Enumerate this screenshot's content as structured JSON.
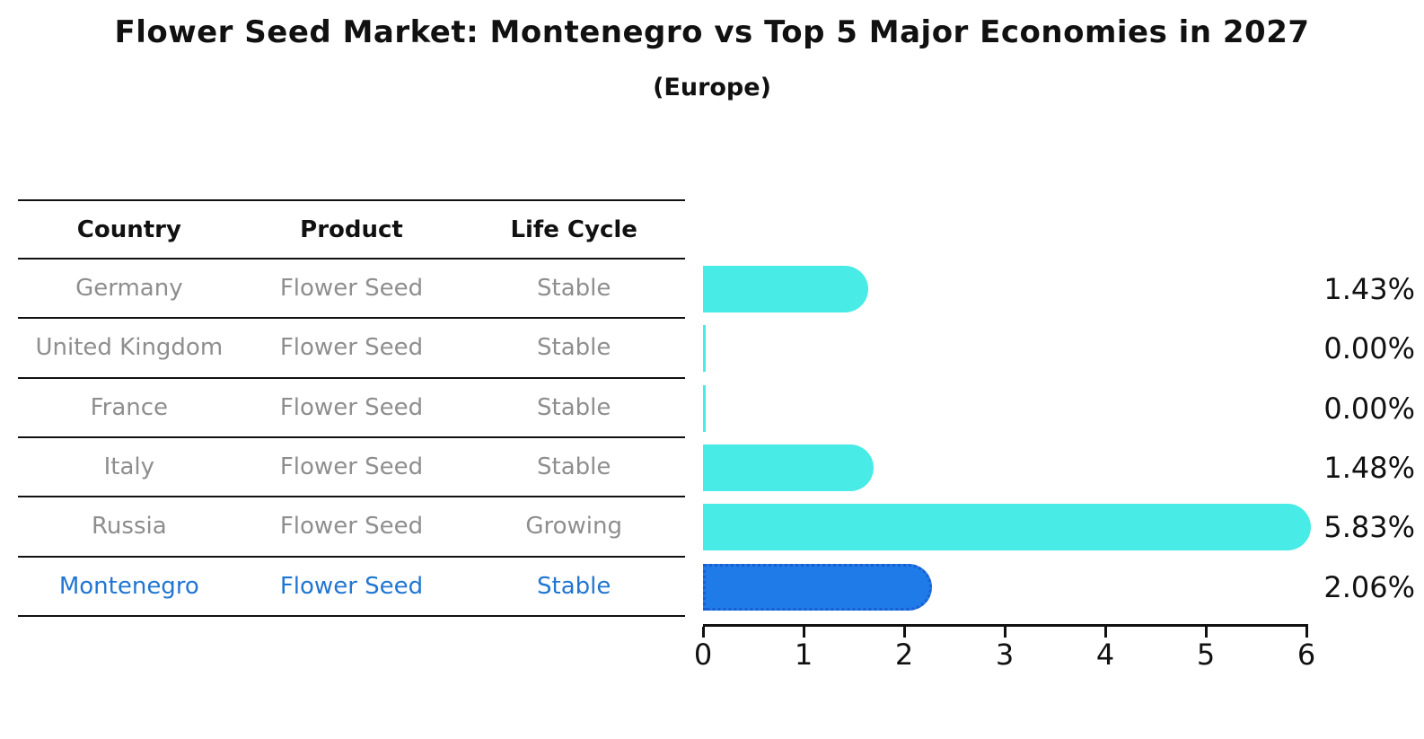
{
  "title": "Flower Seed Market: Montenegro vs Top 5 Major Economies in 2027",
  "subtitle": "(Europe)",
  "table": {
    "headers": [
      "Country",
      "Product",
      "Life Cycle"
    ],
    "header_color": "#111111",
    "text_color": "#8e8e8e",
    "highlight_text_color": "#2176d2"
  },
  "rows": [
    {
      "country": "Germany",
      "product": "Flower Seed",
      "life_cycle": "Stable",
      "value": 1.43,
      "value_label": "1.43%",
      "highlighted": false
    },
    {
      "country": "United Kingdom",
      "product": "Flower Seed",
      "life_cycle": "Stable",
      "value": 0.0,
      "value_label": "0.00%",
      "highlighted": false
    },
    {
      "country": "France",
      "product": "Flower Seed",
      "life_cycle": "Stable",
      "value": 0.0,
      "value_label": "0.00%",
      "highlighted": false
    },
    {
      "country": "Italy",
      "product": "Flower Seed",
      "life_cycle": "Stable",
      "value": 1.48,
      "value_label": "1.48%",
      "highlighted": false
    },
    {
      "country": "Russia",
      "product": "Flower Seed",
      "life_cycle": "Growing",
      "value": 5.83,
      "value_label": "5.83%",
      "highlighted": false
    },
    {
      "country": "Montenegro",
      "product": "Flower Seed",
      "life_cycle": "Stable",
      "value": 2.06,
      "value_label": "2.06%",
      "highlighted": true
    }
  ],
  "chart_data": {
    "type": "bar",
    "orientation": "horizontal",
    "title": "Flower Seed Market: Montenegro vs Top 5 Major Economies in 2027",
    "subtitle": "(Europe)",
    "categories": [
      "Germany",
      "United Kingdom",
      "France",
      "Italy",
      "Russia",
      "Montenegro"
    ],
    "values": [
      1.43,
      0.0,
      0.0,
      1.48,
      5.83,
      2.06
    ],
    "value_labels": [
      "1.43%",
      "0.00%",
      "0.00%",
      "1.48%",
      "5.83%",
      "2.06%"
    ],
    "x_ticks": [
      0,
      1,
      2,
      3,
      4,
      5,
      6
    ],
    "xlim": [
      0,
      6
    ],
    "grid": false,
    "legend": null,
    "bar_color": "#48ebe6",
    "highlight_index": 5,
    "highlight_bar_color": "#1f7be8",
    "highlight_border_color": "#1a5ed0"
  }
}
